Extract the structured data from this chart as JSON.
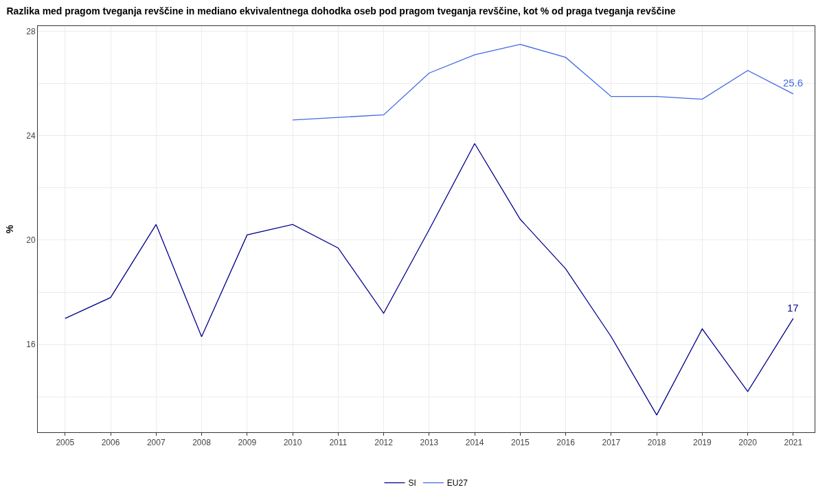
{
  "chart_data": {
    "type": "line",
    "title": "Razlika med pragom tveganja revščine in mediano ekvivalentnega dohodka oseb pod pragom tveganja revščine, kot % od praga tveganja revščine",
    "ylabel": "%",
    "x": [
      2005,
      2006,
      2007,
      2008,
      2009,
      2010,
      2011,
      2012,
      2013,
      2014,
      2015,
      2016,
      2017,
      2018,
      2019,
      2020,
      2021
    ],
    "series": [
      {
        "name": "SI",
        "color": "#00008b",
        "values": [
          17.0,
          17.8,
          20.6,
          16.3,
          20.2,
          20.6,
          19.7,
          17.2,
          20.4,
          23.7,
          20.8,
          18.9,
          16.3,
          13.3,
          16.6,
          14.2,
          17.0
        ],
        "value_labels": [
          null,
          null,
          null,
          null,
          null,
          null,
          null,
          null,
          null,
          null,
          null,
          null,
          null,
          null,
          null,
          null,
          "17"
        ]
      },
      {
        "name": "EU27",
        "color": "#4169e1",
        "values": [
          null,
          null,
          null,
          null,
          null,
          24.6,
          24.7,
          24.8,
          26.4,
          27.1,
          27.5,
          27.0,
          25.5,
          25.5,
          25.4,
          26.5,
          25.6
        ],
        "value_labels": [
          null,
          null,
          null,
          null,
          null,
          null,
          null,
          null,
          null,
          null,
          null,
          null,
          null,
          null,
          null,
          null,
          "25.6"
        ]
      }
    ],
    "xlim": [
      2004.4,
      2021.47
    ],
    "xticks": [
      2005,
      2006,
      2007,
      2008,
      2009,
      2010,
      2011,
      2012,
      2013,
      2014,
      2015,
      2016,
      2017,
      2018,
      2019,
      2020,
      2021
    ],
    "ylim": [
      12.64,
      28.2
    ],
    "yticks": [
      {
        "value": 14,
        "label": null
      },
      16,
      {
        "value": 18,
        "label": null
      },
      20,
      {
        "value": 22,
        "label": null
      },
      24,
      {
        "value": 26,
        "label": null
      },
      28
    ],
    "grid": true,
    "legend": "bottom",
    "marker": "none",
    "line_style": "solid"
  }
}
